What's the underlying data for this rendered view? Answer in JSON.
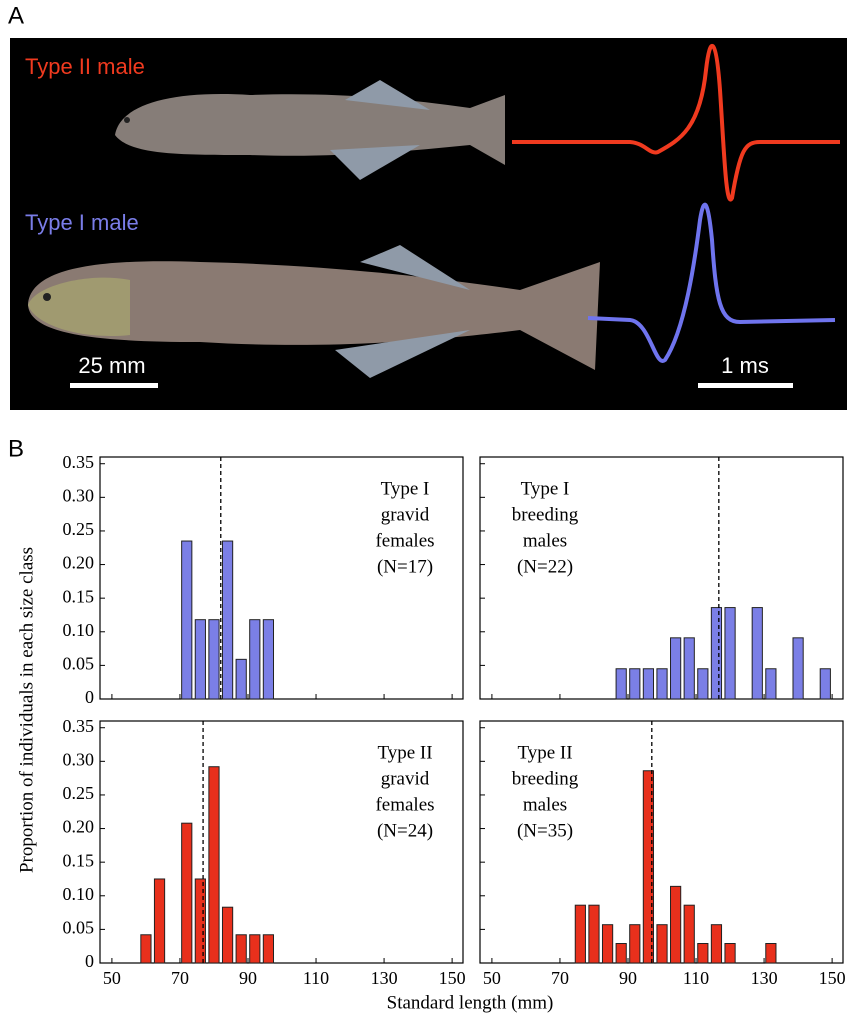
{
  "panel_a": {
    "label": "A",
    "fish_labels": [
      "Type II male",
      "Type I male"
    ],
    "scale_bars": [
      "25 mm",
      "1 ms"
    ]
  },
  "panel_b": {
    "label": "B",
    "ylabel": "Proportion of individuals in each size class",
    "xlabel": "Standard length (mm)"
  },
  "chart_data": [
    {
      "type": "bar",
      "annotation": [
        "Type I",
        "gravid",
        "females",
        "(N=17)"
      ],
      "color": "#7b7fe6",
      "x": [
        72,
        76,
        80,
        84,
        88,
        92,
        96
      ],
      "values": [
        0.235,
        0.118,
        0.118,
        0.235,
        0.059,
        0.118,
        0.118
      ],
      "mean": 82,
      "xlim": [
        46.5,
        153.2
      ],
      "ylim": [
        0,
        0.36
      ],
      "xticks": [
        50,
        70,
        90,
        110,
        130,
        150
      ],
      "yticks": [
        0,
        0.05,
        {
          "value": 0.1,
          "label": "0.10"
        },
        0.15,
        {
          "value": 0.2,
          "label": "0.20"
        },
        0.25,
        {
          "value": 0.3,
          "label": "0.30"
        },
        0.35
      ]
    },
    {
      "type": "bar",
      "annotation": [
        "Type I",
        "breeding",
        "males",
        "(N=22)"
      ],
      "color": "#7b7fe6",
      "x": [
        88,
        92,
        96,
        100,
        104,
        108,
        112,
        116,
        120,
        128,
        132,
        140,
        148
      ],
      "values": [
        0.045,
        0.045,
        0.045,
        0.045,
        0.091,
        0.091,
        0.045,
        0.136,
        0.136,
        0.136,
        0.045,
        0.091,
        0.045
      ],
      "mean": 116.7,
      "xlim": [
        46.5,
        153.2
      ],
      "ylim": [
        0,
        0.36
      ],
      "xticks": [
        50,
        70,
        90,
        110,
        130,
        150
      ],
      "yticks": [
        0,
        0.05,
        0.1,
        0.15,
        0.2,
        0.25,
        0.3,
        0.35
      ]
    },
    {
      "type": "bar",
      "annotation": [
        "Type II",
        "gravid",
        "females",
        "(N=24)"
      ],
      "color": "#e8301c",
      "x": [
        60,
        64,
        72,
        76,
        80,
        84,
        88,
        92,
        96
      ],
      "values": [
        0.042,
        0.125,
        0.208,
        0.125,
        0.292,
        0.083,
        0.042,
        0.042,
        0.042
      ],
      "mean": 76.8,
      "xlim": [
        46.5,
        153.2
      ],
      "ylim": [
        0,
        0.36
      ],
      "xticks": [
        50,
        70,
        90,
        110,
        130,
        150
      ],
      "yticks": [
        0,
        0.05,
        {
          "value": 0.1,
          "label": "0.10"
        },
        0.15,
        {
          "value": 0.2,
          "label": "0.20"
        },
        0.25,
        {
          "value": 0.3,
          "label": "0.30"
        },
        0.35
      ]
    },
    {
      "type": "bar",
      "annotation": [
        "Type II",
        "breeding",
        "males",
        "(N=35)"
      ],
      "color": "#e8301c",
      "x": [
        76,
        80,
        84,
        88,
        92,
        96,
        100,
        104,
        108,
        112,
        116,
        120,
        132
      ],
      "values": [
        0.086,
        0.086,
        0.057,
        0.029,
        0.057,
        0.286,
        0.057,
        0.114,
        0.086,
        0.029,
        0.057,
        0.029,
        0.029
      ],
      "mean": 97,
      "xlim": [
        46.5,
        153.2
      ],
      "ylim": [
        0,
        0.36
      ],
      "xticks": [
        50,
        70,
        90,
        110,
        130,
        150
      ],
      "yticks": [
        0,
        0.05,
        0.1,
        0.15,
        0.2,
        0.25,
        0.3,
        0.35
      ]
    }
  ]
}
